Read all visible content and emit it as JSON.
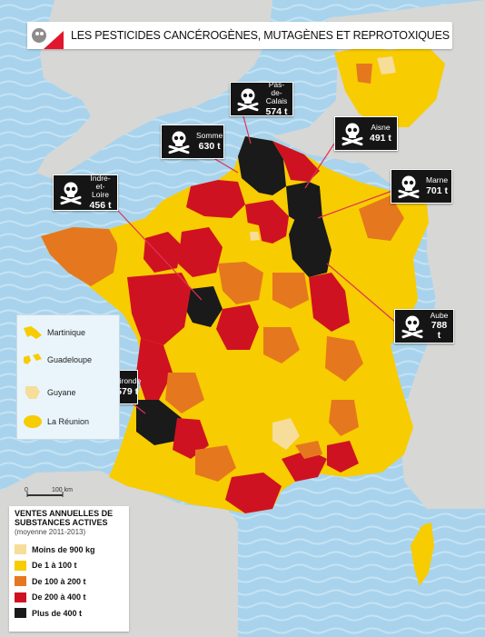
{
  "title": "LES PESTICIDES CANCÉROGÈNES, MUTAGÈNES ET REPROTOXIQUES",
  "colors": {
    "sea": "#a9d3ec",
    "land_neighbors": "#d7d7d5",
    "class_1": "#f6dd99",
    "class_2": "#f7cc00",
    "class_3": "#e5781e",
    "class_4": "#cf1221",
    "class_5": "#1a1a1a",
    "callout_line": "#e0325a"
  },
  "callouts": [
    {
      "name": "Pas-de-Calais",
      "value": "574 t"
    },
    {
      "name": "Somme",
      "value": "630 t"
    },
    {
      "name": "Aisne",
      "value": "491 t"
    },
    {
      "name": "Indre-et-Loire",
      "value": "456 t"
    },
    {
      "name": "Marne",
      "value": "701 t"
    },
    {
      "name": "Aube",
      "value": "788 t"
    },
    {
      "name": "Gironde",
      "value": "579 t"
    }
  ],
  "overseas": [
    {
      "name": "Martinique",
      "class": "class_2"
    },
    {
      "name": "Guadeloupe",
      "class": "class_2"
    },
    {
      "name": "Guyane",
      "class": "class_1"
    },
    {
      "name": "La Réunion",
      "class": "class_2"
    }
  ],
  "scale": {
    "start": "0",
    "end": "100 km"
  },
  "legend": {
    "title": "VENTES ANNUELLES DE SUBSTANCES ACTIVES",
    "subtitle": "(moyenne 2011-2013)",
    "items": [
      {
        "label": "Moins de 900 kg",
        "class": "class_1"
      },
      {
        "label": "De 1 à 100 t",
        "class": "class_2"
      },
      {
        "label": "De 100 à 200 t",
        "class": "class_3"
      },
      {
        "label": "De 200 à 400 t",
        "class": "class_4"
      },
      {
        "label": "Plus de 400 t",
        "class": "class_5"
      }
    ]
  }
}
